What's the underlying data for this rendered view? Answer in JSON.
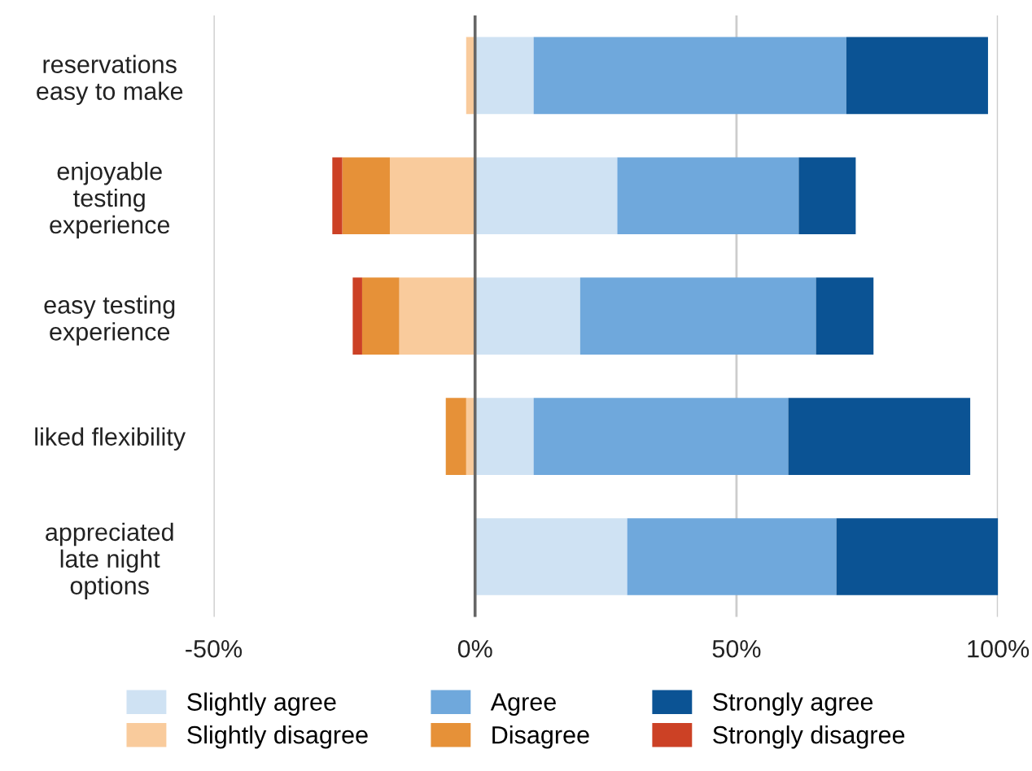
{
  "chart_data": {
    "type": "bar",
    "orientation": "horizontal",
    "stacked": true,
    "categories": [
      "reservations\neasy to make",
      "enjoyable\ntesting\nexperience",
      "easy testing\nexperience",
      "liked flexibility",
      "appreciated\nlate night\noptions"
    ],
    "series": [
      {
        "name": "Slightly agree",
        "color": "#cfe2f3",
        "values": [
          11.2,
          27.2,
          20.1,
          11.2,
          29.1
        ]
      },
      {
        "name": "Agree",
        "color": "#6fa8dc",
        "values": [
          59.8,
          34.7,
          45.1,
          48.7,
          40
        ]
      },
      {
        "name": "Strongly agree",
        "color": "#0b5394",
        "values": [
          27.1,
          10.9,
          11,
          34.8,
          31
        ]
      },
      {
        "name": "Slightly disagree",
        "color": "#f9cb9c",
        "values": [
          -1.7,
          -16.3,
          -14.5,
          -1.7,
          0
        ]
      },
      {
        "name": "Disagree",
        "color": "#e69138",
        "values": [
          0,
          -9.1,
          -7.1,
          -3.9,
          0
        ]
      },
      {
        "name": "Strongly disagree",
        "color": "#cc4125",
        "values": [
          0,
          -1.9,
          -1.8,
          0,
          0
        ]
      }
    ],
    "xlim": [
      -50,
      100
    ],
    "xticks": [
      {
        "value": -50,
        "label": "-50%"
      },
      {
        "value": 0,
        "label": "0%"
      },
      {
        "value": 50,
        "label": "50%"
      },
      {
        "value": 100,
        "label": "100%"
      }
    ],
    "grid": "x",
    "legend": "bottom",
    "ref_lines": [
      {
        "axis": "x",
        "value": 0,
        "color": "#666666"
      }
    ]
  }
}
